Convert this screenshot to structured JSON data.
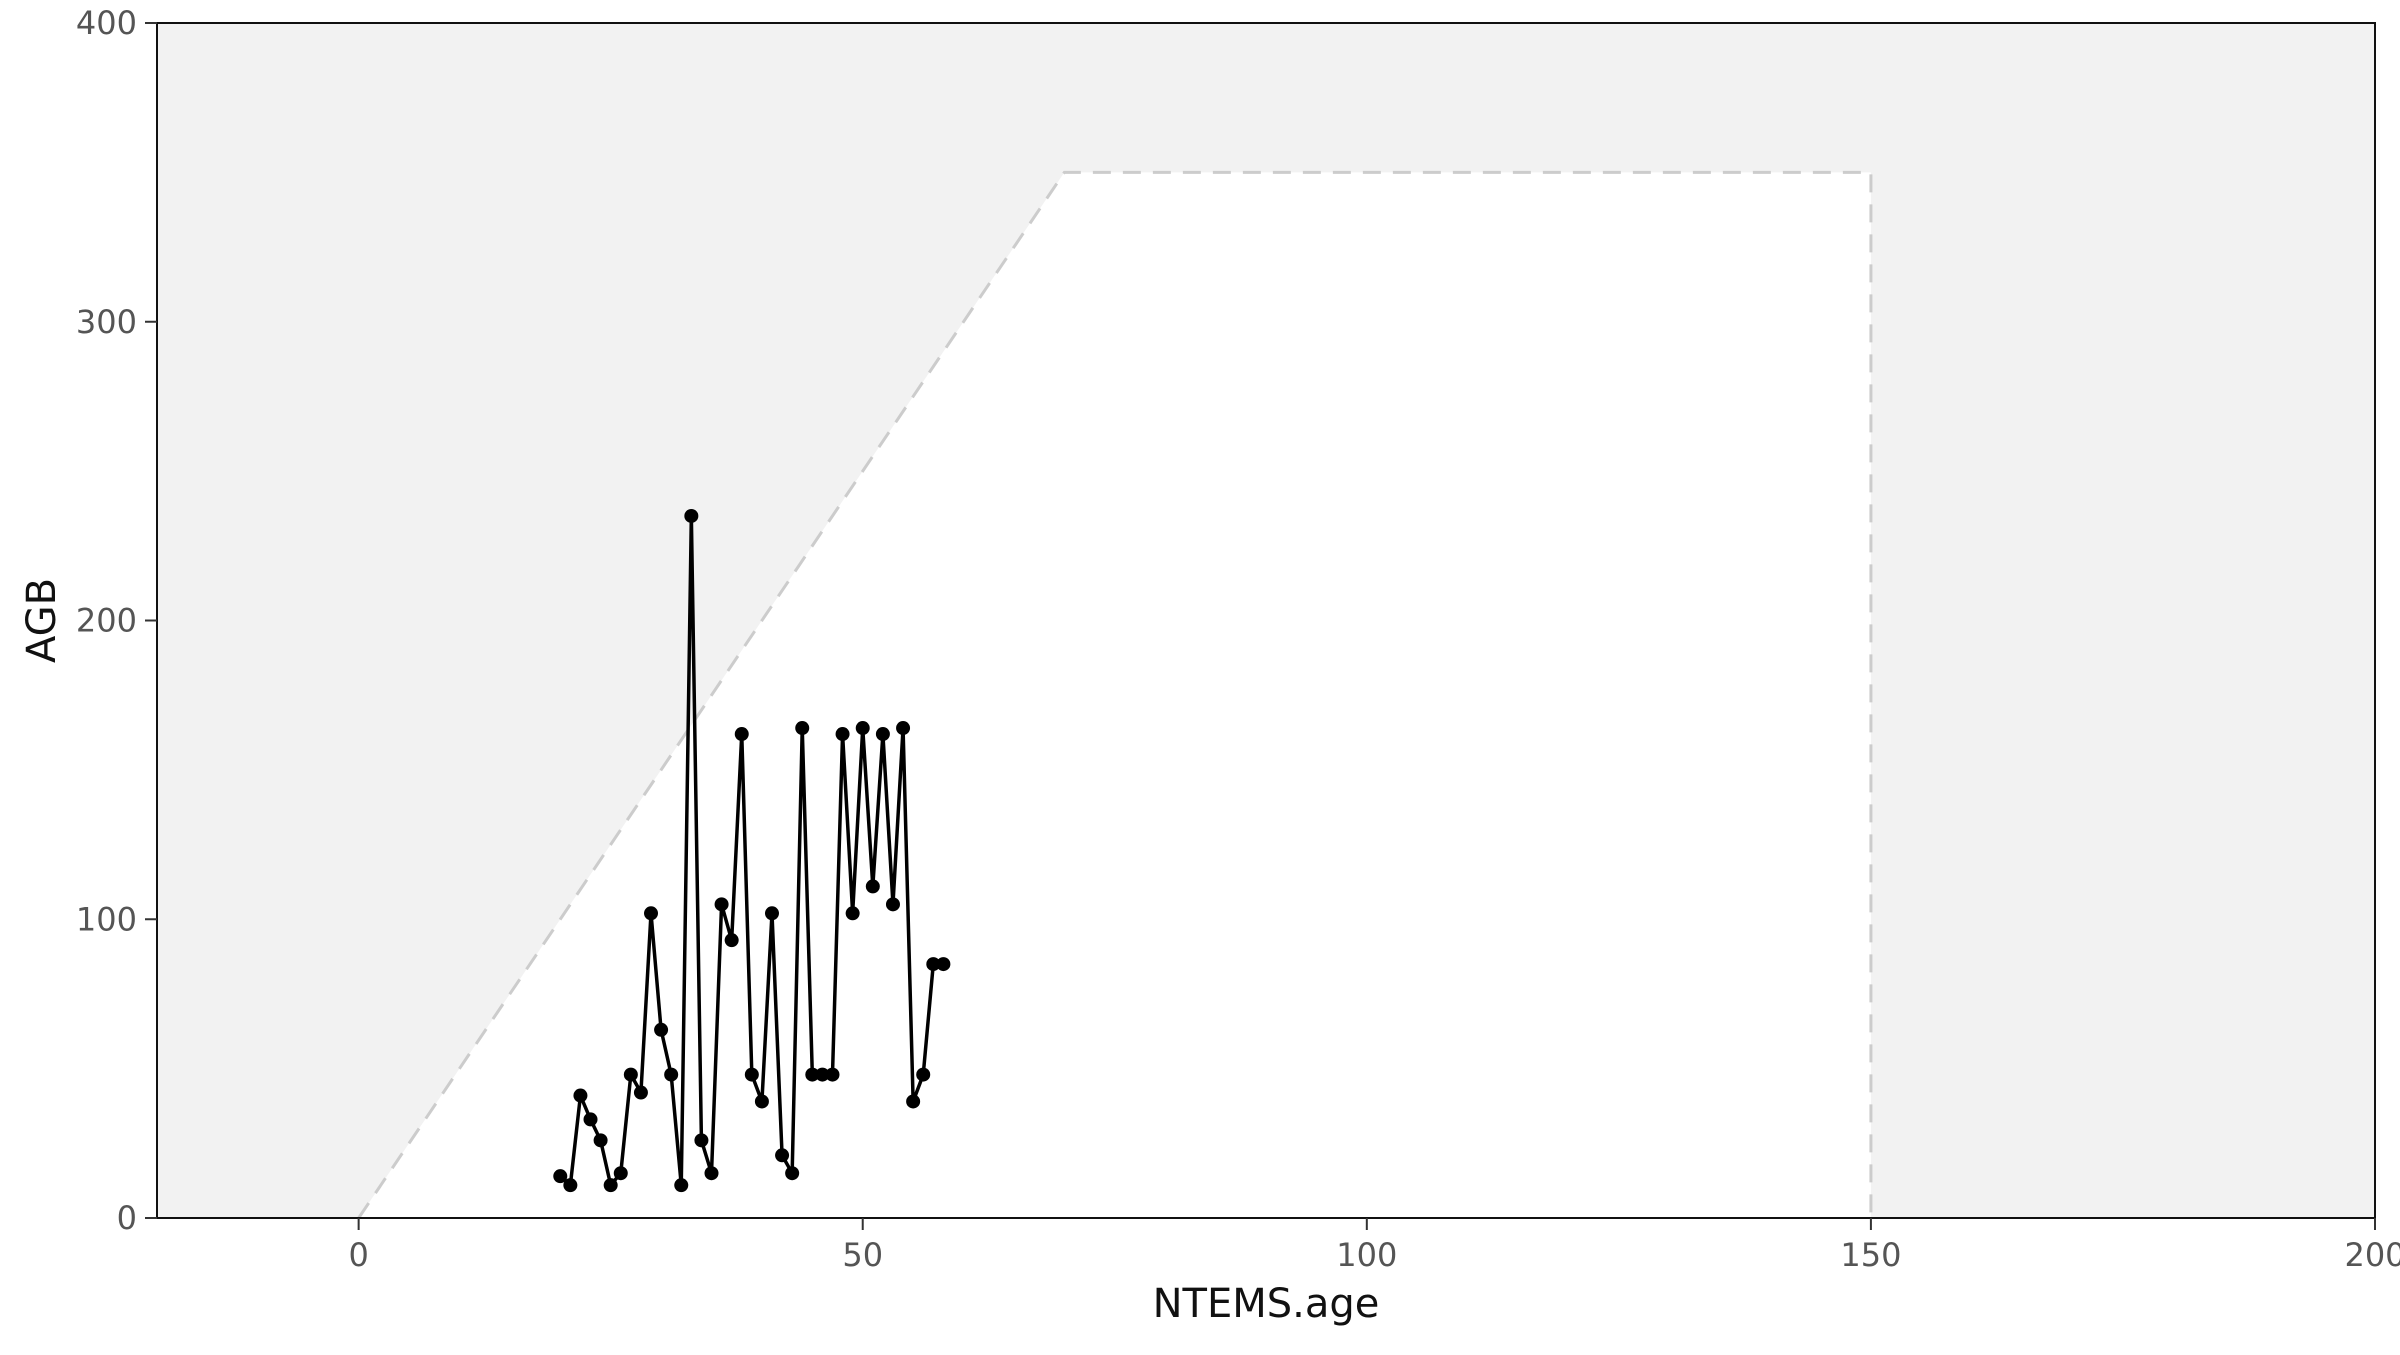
{
  "chart_data": {
    "type": "line",
    "title": "",
    "xlabel": "NTEMS.age",
    "ylabel": "AGB",
    "xlim": [
      -20,
      200
    ],
    "ylim": [
      0,
      400
    ],
    "x_ticks": [
      0,
      50,
      100,
      150,
      200
    ],
    "x_tick_labels": [
      "0",
      "50",
      "100",
      "150",
      "200"
    ],
    "y_ticks": [
      0,
      100,
      200,
      300,
      400
    ],
    "y_tick_labels": [
      "0",
      "100",
      "200",
      "300",
      "400"
    ],
    "grid": false,
    "legend": "none",
    "background_region": {
      "fill": "#f2f2f2",
      "envelope": [
        [
          0,
          0
        ],
        [
          70,
          350
        ],
        [
          150,
          350
        ],
        [
          150,
          0
        ]
      ],
      "envelope_fill": "#ffffff",
      "envelope_stroke": "#cccccc",
      "envelope_line_style": "dashed"
    },
    "series": [
      {
        "color": "#000000",
        "x": [
          20,
          21,
          22,
          23,
          24,
          25,
          26,
          27,
          28,
          29,
          30,
          31,
          32,
          33,
          34,
          35,
          36,
          37,
          38,
          39,
          40,
          41,
          42,
          43,
          44,
          45,
          46,
          47,
          48,
          49,
          50,
          51,
          52,
          53,
          54,
          55,
          56,
          57,
          58
        ],
        "y": [
          14,
          11,
          41,
          33,
          26,
          11,
          15,
          48,
          42,
          102,
          63,
          48,
          11,
          235,
          26,
          15,
          105,
          93,
          162,
          48,
          39,
          102,
          21,
          15,
          164,
          48,
          48,
          48,
          162,
          102,
          164,
          111,
          162,
          105,
          164,
          39,
          48,
          85,
          85
        ]
      }
    ]
  }
}
